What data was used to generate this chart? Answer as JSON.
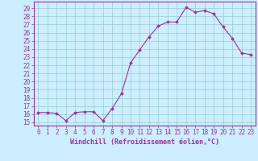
{
  "x": [
    0,
    1,
    2,
    3,
    4,
    5,
    6,
    7,
    8,
    9,
    10,
    11,
    12,
    13,
    14,
    15,
    16,
    17,
    18,
    19,
    20,
    21,
    22,
    23
  ],
  "y": [
    16.2,
    16.2,
    16.1,
    15.2,
    16.2,
    16.3,
    16.3,
    15.2,
    16.7,
    18.5,
    22.3,
    23.9,
    25.5,
    26.8,
    27.3,
    27.3,
    29.1,
    28.5,
    28.7,
    28.3,
    26.7,
    25.3,
    23.5,
    23.3
  ],
  "line_color": "#993399",
  "marker": "D",
  "marker_size": 2.0,
  "bg_color": "#cceeff",
  "grid_color": "#99cccc",
  "xlabel": "Windchill (Refroidissement éolien,°C)",
  "ylabel_ticks": [
    15,
    16,
    17,
    18,
    19,
    20,
    21,
    22,
    23,
    24,
    25,
    26,
    27,
    28,
    29
  ],
  "ylim": [
    14.6,
    29.8
  ],
  "xlim": [
    -0.5,
    23.5
  ],
  "tick_fontsize": 5.5,
  "xlabel_fontsize": 6.0
}
